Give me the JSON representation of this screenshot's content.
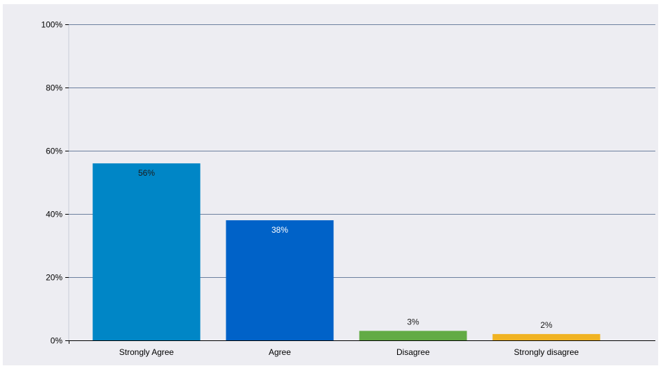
{
  "chart_data": {
    "type": "bar",
    "title": "",
    "xlabel": "",
    "ylabel": "",
    "categories": [
      "Strongly Agree",
      "Agree",
      "Disagree",
      "Strongly disagree"
    ],
    "values": [
      56,
      38,
      3,
      2
    ],
    "data_labels": [
      "56%",
      "38%",
      "3%",
      "2%"
    ],
    "ylim": [
      0,
      100
    ],
    "y_ticks": [
      0,
      20,
      40,
      60,
      80,
      100
    ],
    "y_tick_labels": [
      "0%",
      "20%",
      "40%",
      "60%",
      "80%",
      "100%"
    ],
    "grid": true,
    "legend": "none",
    "bar_colors": [
      "#0086c6",
      "#0062c8",
      "#62ab45",
      "#f0b323"
    ],
    "label_colors": [
      "#1a1a1a",
      "#ffffff",
      "#1a1a1a",
      "#1a1a1a"
    ],
    "gridline_color": "#6b7f9e",
    "background_color": "#ededf2"
  }
}
